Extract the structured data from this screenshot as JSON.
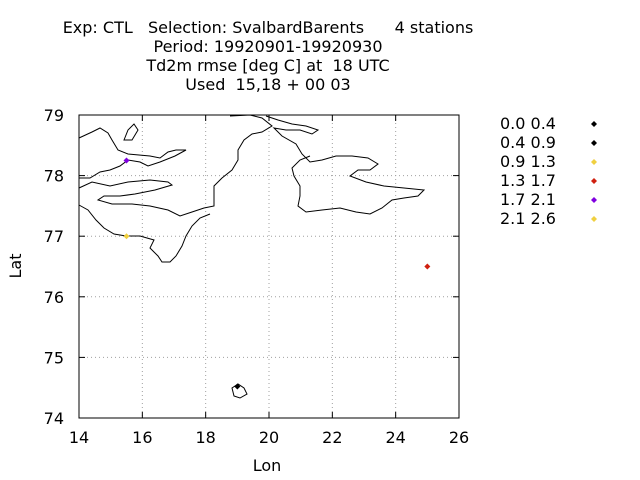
{
  "title_lines": [
    "Exp: CTL   Selection: SvalbardBarents      4 stations",
    "Period: 19920901-19920930",
    "Td2m rmse [deg C] at  18 UTC",
    "Used  15,18 + 00 03"
  ],
  "chart_data": {
    "type": "scatter",
    "title": "Exp: CTL   Selection: SvalbardBarents      4 stations",
    "xlabel": "Lon",
    "ylabel": "Lat",
    "xlim": [
      14,
      26
    ],
    "ylim": [
      74,
      79
    ],
    "xticks": [
      14,
      16,
      18,
      20,
      22,
      24,
      26
    ],
    "yticks": [
      74,
      75,
      76,
      77,
      78,
      79
    ],
    "grid": true,
    "legend_position": "right",
    "legend": [
      {
        "label": "0.0 0.4",
        "color": "#000000"
      },
      {
        "label": "0.4 0.9",
        "color": "#000000"
      },
      {
        "label": "0.9 1.3",
        "color": "#f0d040"
      },
      {
        "label": "1.3 1.7",
        "color": "#d02010"
      },
      {
        "label": "1.7 2.1",
        "color": "#8000e0"
      },
      {
        "label": "2.1 2.6",
        "color": "#f0d040"
      }
    ],
    "points": [
      {
        "lon": 15.5,
        "lat": 78.25,
        "bin": 4
      },
      {
        "lon": 15.5,
        "lat": 77.0,
        "bin": 2
      },
      {
        "lon": 25.0,
        "lat": 76.5,
        "bin": 3
      },
      {
        "lon": 19.0,
        "lat": 74.52,
        "bin": 1
      }
    ]
  }
}
